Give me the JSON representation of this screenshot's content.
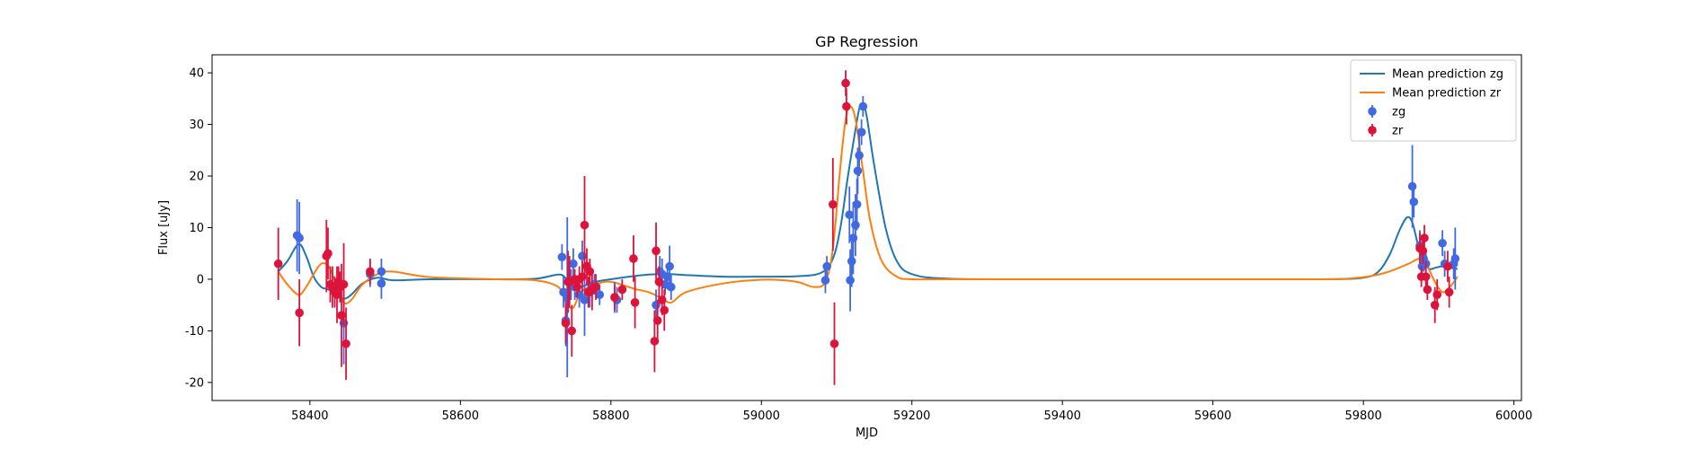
{
  "chart_data": {
    "type": "scatter",
    "title": "GP Regression",
    "xlabel": "MJD",
    "ylabel": "Flux [uJy]",
    "xlim": [
      58270,
      60010
    ],
    "ylim": [
      -23.5,
      43.5
    ],
    "xticks": [
      58400,
      58600,
      58800,
      59000,
      59200,
      59400,
      59600,
      59800,
      60000
    ],
    "yticks": [
      -20,
      -10,
      0,
      10,
      20,
      30,
      40
    ],
    "grid": false,
    "legend": {
      "location": "upper-right",
      "entries": [
        "Mean prediction zg",
        "Mean prediction zr",
        "zg",
        "zr"
      ]
    },
    "colors": {
      "zg_line": "#1f77b4",
      "zr_line": "#ff7f0e",
      "zg_points": "#4169e1",
      "zr_points": "#dc143c"
    },
    "series": [
      {
        "name": "Mean prediction zg",
        "kind": "line",
        "x": [
          58358,
          58370,
          58385,
          58395,
          58405,
          58415,
          58425,
          58435,
          58445,
          58455,
          58470,
          58490,
          58510,
          58560,
          58650,
          58700,
          58730,
          58740,
          58750,
          58760,
          58780,
          58800,
          58830,
          58850,
          58865,
          58880,
          58900,
          58950,
          59000,
          59050,
          59080,
          59095,
          59105,
          59115,
          59125,
          59130,
          59135,
          59140,
          59150,
          59165,
          59180,
          59200,
          59250,
          59400,
          59600,
          59750,
          59800,
          59820,
          59835,
          59848,
          59858,
          59865,
          59872,
          59880,
          59888,
          59895,
          59905,
          59915,
          59925
        ],
        "y": [
          1.5,
          3.5,
          6.8,
          4.5,
          0.5,
          -1.5,
          -2.0,
          -3.0,
          -3.8,
          -3.0,
          -0.8,
          0.3,
          -0.2,
          0.0,
          0.0,
          0.1,
          0.9,
          0.2,
          -1.8,
          -1.5,
          -0.5,
          0.0,
          0.6,
          0.9,
          1.0,
          1.0,
          0.8,
          0.5,
          0.5,
          0.6,
          1.3,
          4.0,
          10.0,
          20.0,
          29.0,
          33.0,
          34.0,
          31.5,
          22.0,
          10.0,
          3.5,
          1.0,
          0.1,
          0.0,
          0.0,
          0.0,
          0.3,
          1.5,
          4.8,
          9.5,
          12.0,
          11.0,
          7.0,
          3.5,
          2.0,
          2.2,
          2.5,
          2.2,
          2.0
        ]
      },
      {
        "name": "Mean prediction zr",
        "kind": "line",
        "x": [
          58358,
          58370,
          58385,
          58395,
          58405,
          58415,
          58425,
          58435,
          58445,
          58455,
          58470,
          58490,
          58510,
          58560,
          58650,
          58700,
          58730,
          58740,
          58750,
          58760,
          58780,
          58800,
          58830,
          58850,
          58865,
          58880,
          58900,
          58950,
          59000,
          59030,
          59050,
          59070,
          59085,
          59095,
          59105,
          59112,
          59118,
          59125,
          59135,
          59145,
          59160,
          59180,
          59200,
          59250,
          59400,
          59600,
          59750,
          59800,
          59830,
          59860,
          59875,
          59885,
          59895,
          59905,
          59915,
          59925
        ],
        "y": [
          1.5,
          -1.0,
          -3.0,
          -1.5,
          1.0,
          3.0,
          2.5,
          -1.0,
          -4.5,
          -4.0,
          -1.0,
          1.0,
          1.5,
          0.4,
          0.0,
          -0.2,
          -1.5,
          -4.5,
          -5.5,
          -2.5,
          -1.0,
          -0.5,
          -1.8,
          -2.5,
          -3.5,
          -4.5,
          -2.5,
          -0.8,
          -0.1,
          -0.2,
          -0.6,
          -1.5,
          -0.5,
          6.0,
          22.0,
          31.0,
          33.5,
          31.0,
          21.0,
          11.0,
          3.5,
          0.5,
          0.0,
          0.0,
          0.0,
          0.0,
          0.0,
          0.4,
          1.3,
          3.0,
          4.0,
          2.5,
          -0.5,
          -2.5,
          -1.5,
          0.5
        ]
      },
      {
        "name": "zg",
        "kind": "errorbar",
        "points": [
          [
            58383,
            8.5,
            7.0
          ],
          [
            58386,
            8.0,
            7.0
          ],
          [
            58445,
            -8.5,
            8.0
          ],
          [
            58480,
            1.0,
            2.5
          ],
          [
            58495,
            1.5,
            2.5
          ],
          [
            58495,
            -0.8,
            3.0
          ],
          [
            58735,
            4.3,
            2.5
          ],
          [
            58737,
            -2.5,
            3.0
          ],
          [
            58740,
            -8.0,
            5.0
          ],
          [
            58742,
            -3.5,
            15.5
          ],
          [
            58747,
            -1.0,
            3.0
          ],
          [
            58750,
            3.0,
            3.0
          ],
          [
            58752,
            -1.5,
            2.5
          ],
          [
            58758,
            -3.0,
            2.5
          ],
          [
            58762,
            4.5,
            3.0
          ],
          [
            58765,
            -4.0,
            7.0
          ],
          [
            58772,
            -2.5,
            3.0
          ],
          [
            58778,
            -1.0,
            2.0
          ],
          [
            58785,
            -3.0,
            2.0
          ],
          [
            58805,
            -3.5,
            3.0
          ],
          [
            58808,
            -4.0,
            2.5
          ],
          [
            58860,
            -5.0,
            3.0
          ],
          [
            58865,
            1.5,
            3.0
          ],
          [
            58868,
            1.0,
            3.0
          ],
          [
            58872,
            -1.0,
            2.0
          ],
          [
            58875,
            0.5,
            2.5
          ],
          [
            58878,
            2.5,
            4.0
          ],
          [
            58880,
            -1.5,
            2.5
          ],
          [
            59085,
            -0.2,
            2.5
          ],
          [
            59087,
            2.5,
            2.0
          ],
          [
            59117,
            12.5,
            5.5
          ],
          [
            59118,
            -0.2,
            6.0
          ],
          [
            59120,
            3.5,
            5.0
          ],
          [
            59122,
            8.0,
            7.0
          ],
          [
            59125,
            10.5,
            6.0
          ],
          [
            59128,
            21.0,
            4.5
          ],
          [
            59130,
            24.0,
            4.0
          ],
          [
            59133,
            28.5,
            2.5
          ],
          [
            59135,
            33.5,
            2.0
          ],
          [
            59127,
            14.5,
            5.0
          ],
          [
            59865,
            18.0,
            8.0
          ],
          [
            59867,
            15.0,
            3.0
          ],
          [
            59875,
            6.5,
            3.0
          ],
          [
            59878,
            2.5,
            2.5
          ],
          [
            59880,
            4.0,
            2.5
          ],
          [
            59883,
            3.0,
            3.0
          ],
          [
            59905,
            7.0,
            2.5
          ],
          [
            59908,
            3.0,
            2.5
          ],
          [
            59920,
            3.0,
            3.0
          ],
          [
            59922,
            4.0,
            6.0
          ]
        ]
      },
      {
        "name": "zr",
        "kind": "errorbar",
        "points": [
          [
            58358,
            3.0,
            7.0
          ],
          [
            58386,
            -6.5,
            6.5
          ],
          [
            58422,
            4.5,
            7.0
          ],
          [
            58424,
            5.0,
            5.0
          ],
          [
            58427,
            -1.0,
            3.5
          ],
          [
            58430,
            -1.5,
            4.0
          ],
          [
            58433,
            -2.5,
            3.0
          ],
          [
            58436,
            -3.0,
            5.5
          ],
          [
            58438,
            -0.5,
            3.0
          ],
          [
            58440,
            -1.5,
            3.0
          ],
          [
            58442,
            -7.0,
            10.0
          ],
          [
            58445,
            -1.0,
            8.0
          ],
          [
            58448,
            -12.5,
            7.0
          ],
          [
            58480,
            1.5,
            2.5
          ],
          [
            58740,
            -8.5,
            4.0
          ],
          [
            58743,
            -0.5,
            6.0
          ],
          [
            58745,
            -0.5,
            5.0
          ],
          [
            58748,
            -10.0,
            5.0
          ],
          [
            58752,
            0.0,
            2.0
          ],
          [
            58755,
            -1.5,
            2.0
          ],
          [
            58758,
            0.0,
            2.5
          ],
          [
            58762,
            0.5,
            3.0
          ],
          [
            58765,
            10.5,
            9.5
          ],
          [
            58768,
            2.5,
            3.5
          ],
          [
            58770,
            -2.5,
            3.0
          ],
          [
            58772,
            1.5,
            2.5
          ],
          [
            58775,
            -2.0,
            4.0
          ],
          [
            58780,
            -1.5,
            2.5
          ],
          [
            58805,
            -3.5,
            2.5
          ],
          [
            58815,
            -2.0,
            2.0
          ],
          [
            58830,
            4.0,
            4.5
          ],
          [
            58832,
            -4.5,
            5.0
          ],
          [
            58858,
            -12.0,
            6.0
          ],
          [
            58860,
            5.5,
            5.5
          ],
          [
            58862,
            -8.0,
            4.0
          ],
          [
            58864,
            -0.5,
            3.0
          ],
          [
            58868,
            -4.0,
            3.0
          ],
          [
            58871,
            -6.0,
            4.0
          ],
          [
            59095,
            14.5,
            9.0
          ],
          [
            59097,
            -12.5,
            8.0
          ],
          [
            59112,
            38.0,
            2.5
          ],
          [
            59113,
            33.5,
            3.5
          ],
          [
            59875,
            6.0,
            3.0
          ],
          [
            59877,
            0.5,
            2.0
          ],
          [
            59879,
            5.5,
            2.5
          ],
          [
            59881,
            8.0,
            2.5
          ],
          [
            59883,
            0.5,
            3.0
          ],
          [
            59885,
            -2.0,
            2.0
          ],
          [
            59895,
            -5.0,
            3.5
          ],
          [
            59898,
            -3.0,
            3.0
          ],
          [
            59912,
            2.5,
            3.0
          ],
          [
            59914,
            -2.5,
            3.0
          ]
        ]
      }
    ]
  }
}
